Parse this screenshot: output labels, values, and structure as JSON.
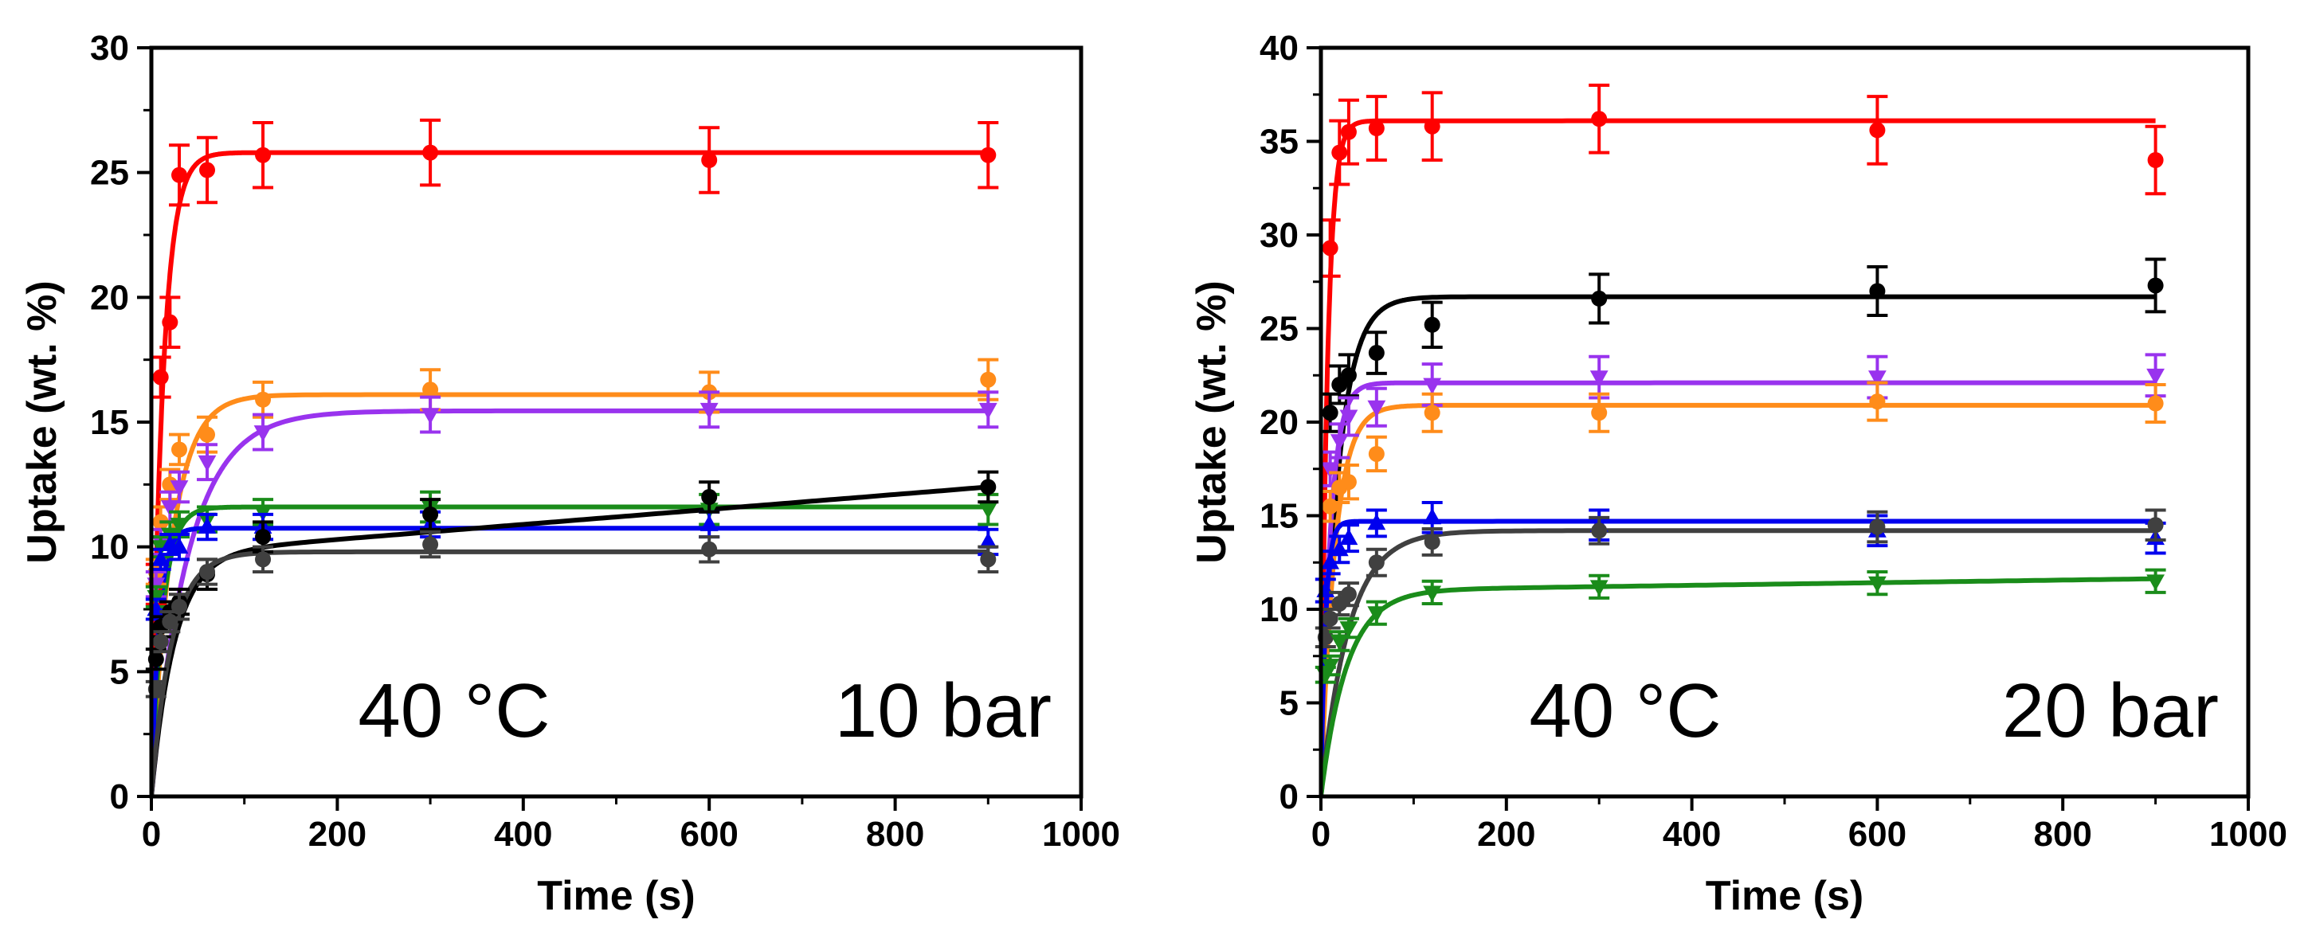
{
  "chart_data": [
    {
      "type": "scatter",
      "panel": "left",
      "xlabel": "Time (s)",
      "ylabel": "Uptake (wt. %)",
      "xlim": [
        0,
        1000
      ],
      "ylim": [
        0,
        30
      ],
      "xticks": [
        0,
        200,
        400,
        600,
        800,
        1000
      ],
      "yticks": [
        0,
        5,
        10,
        15,
        20,
        25,
        30
      ],
      "annotations": {
        "temperature": "40 °C",
        "pressure": "10 bar"
      },
      "series": [
        {
          "name": "red",
          "color": "#ff0000",
          "marker": "circle",
          "x": [
            5,
            10,
            20,
            30,
            60,
            120,
            300,
            600,
            900
          ],
          "y": [
            8.5,
            16.8,
            19.0,
            24.9,
            25.1,
            25.7,
            25.8,
            25.5,
            25.7
          ],
          "err": [
            0.8,
            0.8,
            1.0,
            1.2,
            1.3,
            1.3,
            1.3,
            1.3,
            1.3
          ],
          "fit": {
            "a": 25.8,
            "b": 0,
            "tau": 12,
            "t0": 0
          }
        },
        {
          "name": "orange",
          "color": "#ff8c1a",
          "marker": "circle",
          "x": [
            5,
            10,
            20,
            30,
            60,
            120,
            300,
            600,
            900
          ],
          "y": [
            9.0,
            11.0,
            12.5,
            13.9,
            14.5,
            15.9,
            16.3,
            16.2,
            16.7
          ],
          "err": [
            0.5,
            0.6,
            0.6,
            0.6,
            0.7,
            0.7,
            0.8,
            0.8,
            0.8
          ],
          "fit": {
            "a": 16.1,
            "b": 0,
            "tau": 22,
            "t0": 0
          }
        },
        {
          "name": "purple",
          "color": "#9933ee",
          "marker": "triangle-down",
          "x": [
            5,
            10,
            20,
            30,
            60,
            120,
            300,
            600,
            900
          ],
          "y": [
            8.5,
            10.2,
            11.6,
            12.4,
            13.4,
            14.6,
            15.3,
            15.5,
            15.5
          ],
          "err": [
            0.5,
            0.5,
            0.6,
            0.6,
            0.7,
            0.7,
            0.7,
            0.7,
            0.7
          ],
          "fit": {
            "a": 15.45,
            "b": 0,
            "tau": 40,
            "t0": 0
          }
        },
        {
          "name": "green",
          "color": "#1a8c1a",
          "marker": "triangle-down",
          "x": [
            5,
            10,
            20,
            30,
            60,
            120,
            300,
            600,
            900
          ],
          "y": [
            8.0,
            10.0,
            10.5,
            10.9,
            11.1,
            11.4,
            11.6,
            11.5,
            11.5
          ],
          "err": [
            0.4,
            0.4,
            0.5,
            0.5,
            0.5,
            0.5,
            0.6,
            0.6,
            0.6
          ],
          "fit": {
            "a": 11.6,
            "b": 0,
            "tau": 12,
            "t0": 0
          }
        },
        {
          "name": "blue",
          "color": "#0000ee",
          "marker": "triangle-up",
          "x": [
            5,
            10,
            20,
            30,
            60,
            120,
            300,
            600,
            900
          ],
          "y": [
            7.5,
            9.5,
            10.1,
            10.0,
            10.8,
            10.8,
            10.9,
            10.9,
            10.2
          ],
          "err": [
            0.4,
            0.4,
            0.4,
            0.5,
            0.5,
            0.5,
            0.5,
            0.5,
            0.5
          ],
          "fit": {
            "a": 10.75,
            "b": 0,
            "tau": 8,
            "t0": 0
          }
        },
        {
          "name": "black",
          "color": "#000000",
          "marker": "circle",
          "x": [
            5,
            10,
            20,
            30,
            60,
            120,
            300,
            600,
            900
          ],
          "y": [
            5.5,
            6.8,
            7.4,
            7.8,
            8.9,
            10.4,
            11.3,
            12.0,
            12.4
          ],
          "err": [
            0.4,
            0.4,
            0.4,
            0.5,
            0.6,
            0.6,
            0.6,
            0.6,
            0.6
          ],
          "fit": {
            "a": 9.7,
            "b": 0.003,
            "tau": 25,
            "t0": 0
          }
        },
        {
          "name": "dark-gray",
          "color": "#404040",
          "marker": "circle",
          "x": [
            5,
            10,
            20,
            30,
            60,
            120,
            300,
            600,
            900
          ],
          "y": [
            4.3,
            6.2,
            7.0,
            7.6,
            9.0,
            9.5,
            10.1,
            9.9,
            9.5
          ],
          "err": [
            0.3,
            0.4,
            0.4,
            0.5,
            0.5,
            0.5,
            0.5,
            0.5,
            0.5
          ],
          "fit": {
            "a": 9.8,
            "b": 0,
            "tau": 22,
            "t0": 0
          }
        }
      ]
    },
    {
      "type": "scatter",
      "panel": "right",
      "xlabel": "Time (s)",
      "ylabel": "Uptake (wt. %)",
      "xlim": [
        0,
        1000
      ],
      "ylim": [
        0,
        40
      ],
      "xticks": [
        0,
        200,
        400,
        600,
        800,
        1000
      ],
      "yticks": [
        0,
        5,
        10,
        15,
        20,
        25,
        30,
        35,
        40
      ],
      "annotations": {
        "temperature": "40 °C",
        "pressure": "20 bar"
      },
      "series": [
        {
          "name": "red",
          "color": "#ff0000",
          "marker": "circle",
          "x": [
            10,
            20,
            30,
            60,
            120,
            300,
            600,
            900
          ],
          "y": [
            29.3,
            34.4,
            35.5,
            35.7,
            35.8,
            36.2,
            35.6,
            34.0
          ],
          "err": [
            1.5,
            1.7,
            1.7,
            1.7,
            1.8,
            1.8,
            1.8,
            1.8
          ],
          "fit": {
            "a": 36.1,
            "b": 0,
            "tau": 7,
            "t0": 0
          }
        },
        {
          "name": "black",
          "color": "#000000",
          "marker": "circle",
          "x": [
            10,
            20,
            30,
            60,
            120,
            300,
            600,
            900
          ],
          "y": [
            20.5,
            22.0,
            22.5,
            23.7,
            25.2,
            26.6,
            27.0,
            27.3
          ],
          "err": [
            1.0,
            1.0,
            1.1,
            1.1,
            1.2,
            1.3,
            1.3,
            1.4
          ],
          "fit": {
            "a": 26.7,
            "b": 0,
            "tau": 18,
            "t0": 0
          }
        },
        {
          "name": "purple",
          "color": "#9933ee",
          "marker": "triangle-down",
          "x": [
            10,
            20,
            30,
            60,
            120,
            300,
            600,
            900
          ],
          "y": [
            17.5,
            19.0,
            20.3,
            20.8,
            22.0,
            22.4,
            22.4,
            22.5
          ],
          "err": [
            0.9,
            0.9,
            1.0,
            1.0,
            1.1,
            1.1,
            1.1,
            1.1
          ],
          "fit": {
            "a": 22.1,
            "b": 0,
            "tau": 10,
            "t0": 0
          }
        },
        {
          "name": "orange",
          "color": "#ff8c1a",
          "marker": "circle",
          "x": [
            10,
            20,
            30,
            60,
            120,
            300,
            600,
            900
          ],
          "y": [
            15.5,
            16.5,
            16.8,
            18.3,
            20.5,
            20.5,
            21.1,
            21.0
          ],
          "err": [
            0.8,
            0.8,
            0.9,
            0.9,
            1.0,
            1.0,
            1.0,
            1.0
          ],
          "fit": {
            "a": 20.9,
            "b": 0,
            "tau": 15,
            "t0": 0
          }
        },
        {
          "name": "blue",
          "color": "#0000ee",
          "marker": "triangle-up",
          "x": [
            5,
            10,
            20,
            30,
            60,
            120,
            300,
            600,
            900
          ],
          "y": [
            11.0,
            12.5,
            13.2,
            13.8,
            14.6,
            14.9,
            14.5,
            14.2,
            13.8
          ],
          "err": [
            0.6,
            0.6,
            0.7,
            0.7,
            0.7,
            0.8,
            0.8,
            0.8,
            0.8
          ],
          "fit": {
            "a": 14.7,
            "b": 0,
            "tau": 5,
            "t0": 0
          }
        },
        {
          "name": "dark-gray",
          "color": "#404040",
          "marker": "circle",
          "x": [
            5,
            10,
            20,
            30,
            60,
            120,
            300,
            600,
            900
          ],
          "y": [
            8.5,
            9.5,
            10.3,
            10.8,
            12.5,
            13.6,
            14.2,
            14.4,
            14.5
          ],
          "err": [
            0.5,
            0.5,
            0.6,
            0.6,
            0.7,
            0.7,
            0.7,
            0.8,
            0.8
          ],
          "fit": {
            "a": 14.2,
            "b": 0,
            "tau": 30,
            "t0": 0
          }
        },
        {
          "name": "green",
          "color": "#1a8c1a",
          "marker": "triangle-down",
          "x": [
            5,
            10,
            20,
            30,
            60,
            120,
            300,
            600,
            900
          ],
          "y": [
            6.5,
            7.0,
            8.3,
            9.0,
            9.8,
            10.9,
            11.2,
            11.4,
            11.5
          ],
          "err": [
            0.4,
            0.5,
            0.5,
            0.5,
            0.6,
            0.6,
            0.6,
            0.6,
            0.6
          ],
          "fit": {
            "a": 11.0,
            "b": 0.0007,
            "tau": 28,
            "t0": 0
          }
        }
      ]
    }
  ]
}
